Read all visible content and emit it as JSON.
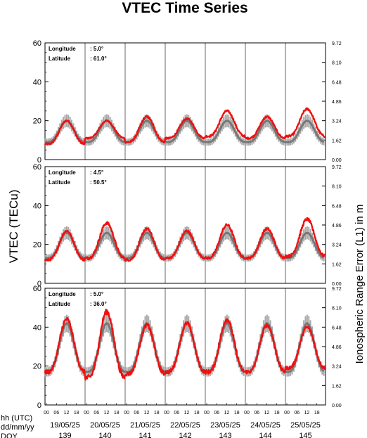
{
  "chart_data": {
    "type": "line",
    "title": "VTEC Time Series",
    "ylabel_left": "VTEC (TECu)",
    "ylabel_right": "Ionospheric Range Error (L1) in m",
    "ylim": [
      0,
      60
    ],
    "yticks_left": [
      "0",
      "20",
      "40",
      "60"
    ],
    "yticks_right": [
      "0.00",
      "1.62",
      "3.24",
      "4.86",
      "6.48",
      "8.10",
      "9.72"
    ],
    "yticks_right_values": [
      0,
      10,
      20,
      30,
      40,
      50,
      60
    ],
    "hour_ticks": [
      "00",
      "06",
      "12",
      "18"
    ],
    "row_labels": [
      "hh (UTC)",
      "dd/mm/yy",
      "DOY"
    ],
    "dates": [
      "19/05/25",
      "20/05/25",
      "21/05/25",
      "22/05/25",
      "23/05/25",
      "24/05/25",
      "25/05/25"
    ],
    "doy": [
      "139",
      "140",
      "141",
      "142",
      "143",
      "144",
      "145"
    ],
    "series_colors": {
      "observed": "#ee1111",
      "reference": "#777777",
      "reference_bars": "#a8a8a8"
    },
    "panels": [
      {
        "longitude_label": "Longitude",
        "longitude": ":   5.0°",
        "latitude_label": "Latitude",
        "latitude": ": 61.0°",
        "reference_daily": {
          "min": 9,
          "max": 20,
          "spread": 3
        },
        "observed_daily": [
          {
            "min": 8,
            "max": 20
          },
          {
            "min": 11,
            "max": 20
          },
          {
            "min": 9,
            "max": 22
          },
          {
            "min": 11,
            "max": 21
          },
          {
            "min": 12,
            "max": 25
          },
          {
            "min": 11,
            "max": 22
          },
          {
            "min": 12,
            "max": 26
          }
        ]
      },
      {
        "longitude_label": "Longitude",
        "longitude": ":   4.5°",
        "latitude_label": "Latitude",
        "latitude": ": 50.5°",
        "reference_daily": {
          "min": 13,
          "max": 26,
          "spread": 3
        },
        "observed_daily": [
          {
            "min": 12,
            "max": 27
          },
          {
            "min": 13,
            "max": 31
          },
          {
            "min": 12,
            "max": 28
          },
          {
            "min": 13,
            "max": 27
          },
          {
            "min": 13,
            "max": 30
          },
          {
            "min": 13,
            "max": 28
          },
          {
            "min": 14,
            "max": 33
          }
        ]
      },
      {
        "longitude_label": "Longitude",
        "longitude": ":   5.0°",
        "latitude_label": "Latitude",
        "latitude": ": 36.0°",
        "reference_daily": {
          "min": 17,
          "max": 42,
          "spread": 4
        },
        "observed_daily": [
          {
            "min": 17,
            "max": 44
          },
          {
            "min": 14,
            "max": 48
          },
          {
            "min": 16,
            "max": 41
          },
          {
            "min": 17,
            "max": 42
          },
          {
            "min": 17,
            "max": 44
          },
          {
            "min": 17,
            "max": 41
          },
          {
            "min": 19,
            "max": 40
          }
        ]
      }
    ]
  }
}
